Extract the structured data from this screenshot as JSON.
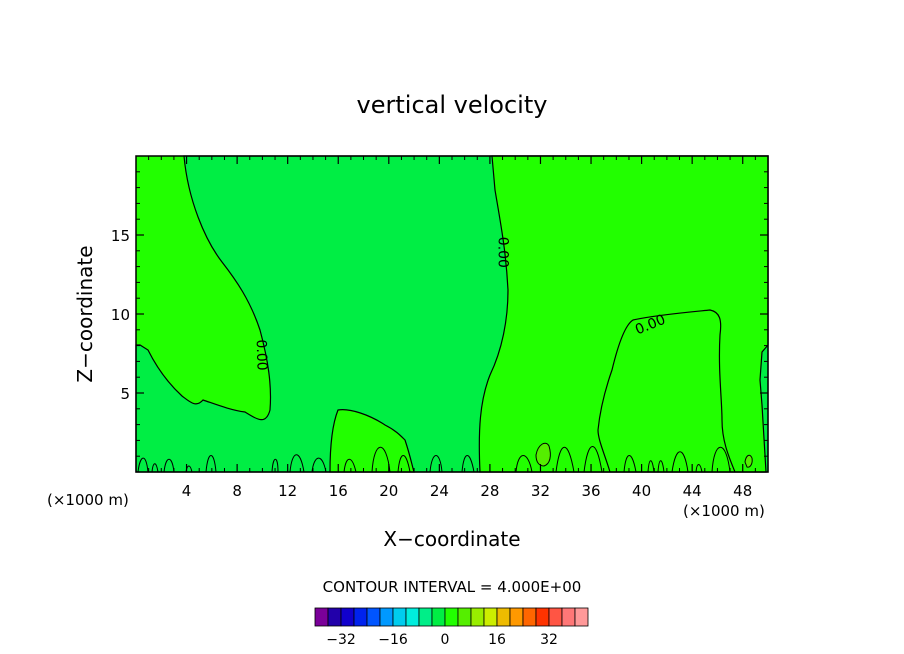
{
  "chart_data": {
    "type": "heatmap",
    "title": "vertical velocity",
    "xlabel": "X−coordinate",
    "ylabel": "Z−coordinate",
    "x_unit_left": "(×1000 m)",
    "x_unit_right": "(×1000 m)",
    "xlim": [
      0,
      50
    ],
    "ylim": [
      0,
      20
    ],
    "x_ticks": [
      4,
      8,
      12,
      16,
      20,
      24,
      28,
      32,
      36,
      40,
      44,
      48
    ],
    "y_ticks": [
      5,
      10,
      15
    ],
    "contour_interval_text": "CONTOUR INTERVAL = 4.000E+00",
    "contour_labels": [
      {
        "text": "0.00",
        "x": 9.9,
        "z": 7.4,
        "angle": 88
      },
      {
        "text": "0.00",
        "x": 29.0,
        "z": 13.9,
        "angle": 90
      },
      {
        "text": "0.00",
        "x": 40.7,
        "z": 9.3,
        "angle": -22
      }
    ],
    "regions": [
      {
        "name": "positive",
        "color": "#22ff00"
      },
      {
        "name": "near-zero",
        "color": "#00ee44"
      }
    ],
    "colorbar": {
      "colors": [
        "#7a0099",
        "#2200aa",
        "#1100cc",
        "#0022ee",
        "#0055ff",
        "#0099ff",
        "#00ccee",
        "#00eedd",
        "#00ee88",
        "#00ee44",
        "#22ff00",
        "#55ee00",
        "#99ee00",
        "#ccee00",
        "#eebb00",
        "#ff9900",
        "#ff6600",
        "#ff3300",
        "#ff5544",
        "#ff7777",
        "#ff9999"
      ],
      "tick_values": [
        -32,
        -16,
        0,
        16,
        32
      ],
      "tick_labels": [
        "−32",
        "−16",
        "0",
        "16",
        "32"
      ],
      "range": [
        -40,
        44
      ]
    }
  }
}
